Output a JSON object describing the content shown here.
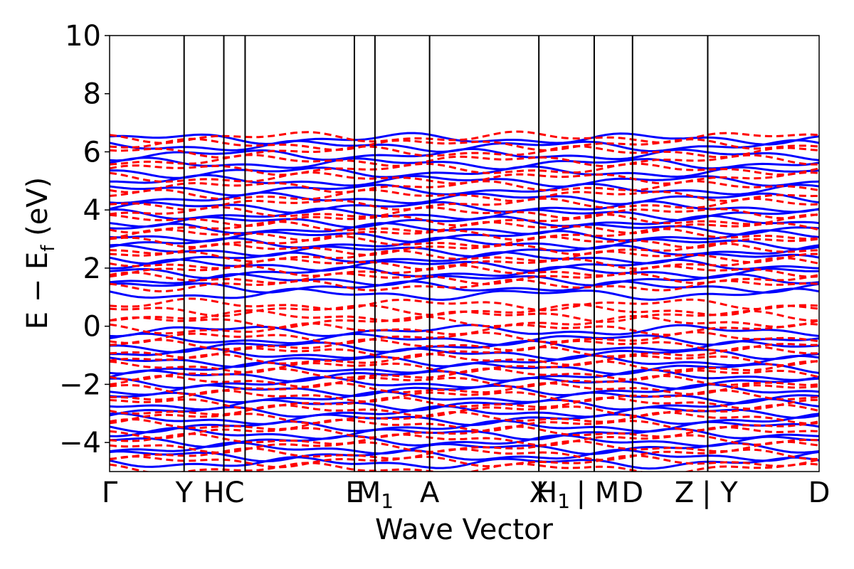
{
  "chart_data": {
    "type": "line",
    "title": "",
    "xlabel": "Wave Vector",
    "ylabel": "E − E",
    "ylabel_sub": "f",
    "ylabel_unit": " (eV)",
    "ylim": [
      -5,
      10
    ],
    "yticks": [
      -4,
      -2,
      0,
      2,
      4,
      6,
      8,
      10
    ],
    "ytick_labels": [
      "−4",
      "−2",
      "0",
      "2",
      "4",
      "6",
      "8",
      "10"
    ],
    "xlim": [
      0,
      1
    ],
    "kpoint_positions": [
      0.0,
      0.105,
      0.161,
      0.191,
      0.345,
      0.374,
      0.451,
      0.605,
      0.683,
      0.737,
      0.843,
      1.0
    ],
    "kpoint_labels": [
      {
        "x": 0.0,
        "text": "Γ"
      },
      {
        "x": 0.105,
        "text": "Y"
      },
      {
        "x": 0.161,
        "text": "HC"
      },
      {
        "x": 0.345,
        "text": "E"
      },
      {
        "x": 0.374,
        "text": "M",
        "sub": "1"
      },
      {
        "x": 0.451,
        "text": "A"
      },
      {
        "x": 0.605,
        "text": "X"
      },
      {
        "x": 0.625,
        "text": "H",
        "sub": "1"
      },
      {
        "x": 0.688,
        "text": "| M"
      },
      {
        "x": 0.737,
        "text": "D"
      },
      {
        "x": 0.81,
        "text": "Z"
      },
      {
        "x": 0.86,
        "text": "| Y"
      },
      {
        "x": 1.0,
        "text": "D"
      }
    ],
    "grid": false,
    "series": [
      {
        "color": "#0000ff",
        "style": "solid",
        "bands_at_gamma": [
          6.45,
          6.2,
          5.9,
          5.6,
          5.3,
          5.0,
          4.7,
          4.4,
          4.1,
          3.85,
          3.6,
          3.35,
          3.1,
          2.85,
          2.6,
          2.35,
          2.1,
          1.85,
          1.6,
          1.35,
          1.1,
          -0.15,
          -0.45,
          -0.7,
          -0.95,
          -1.2,
          -1.45,
          -1.7,
          -1.95,
          -2.2,
          -2.45,
          -2.7,
          -2.95,
          -3.2,
          -3.45,
          -3.7,
          -3.95,
          -4.2,
          -4.45,
          -4.7
        ]
      },
      {
        "color": "#ff0000",
        "style": "dashed",
        "bands_at_gamma": [
          6.5,
          6.25,
          6.0,
          5.7,
          5.4,
          5.1,
          4.8,
          4.5,
          4.2,
          3.9,
          3.65,
          3.4,
          3.15,
          2.9,
          2.65,
          2.4,
          2.15,
          1.9,
          1.65,
          1.4,
          0.75,
          0.55,
          0.35,
          0.15,
          -0.1,
          -0.4,
          -0.65,
          -0.9,
          -1.15,
          -1.4,
          -1.65,
          -1.9,
          -2.15,
          -2.4,
          -2.65,
          -2.9,
          -3.15,
          -3.4,
          -3.65,
          -3.9,
          -4.15,
          -4.4,
          -4.65,
          -4.9
        ]
      }
    ]
  }
}
